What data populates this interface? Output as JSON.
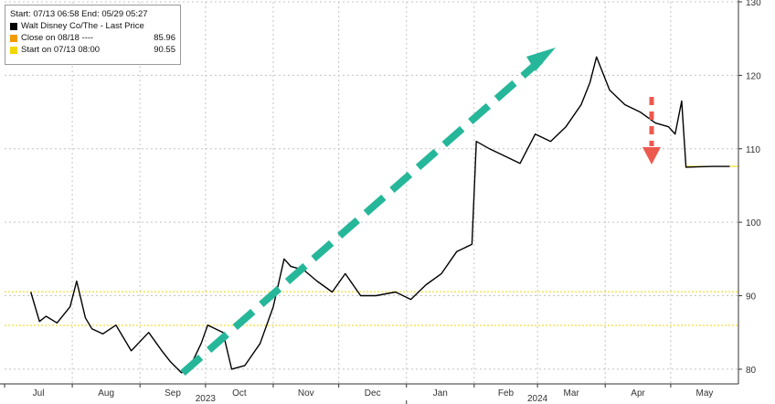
{
  "legend": {
    "header": "Start: 07/13 06:58 End: 05/29 05:27",
    "items": [
      {
        "name": "Walt Disney Co/The - Last Price",
        "value": "",
        "color": "#000000"
      },
      {
        "name": "Close on 08/18 ----",
        "value": "85.96",
        "color": "#f29b00"
      },
      {
        "name": "Start on 07/13 08:00",
        "value": "90.55",
        "color": "#f2d600"
      }
    ]
  },
  "chart_data": {
    "type": "line",
    "title": "",
    "xlabel": "",
    "ylabel": "",
    "ylim": [
      78,
      130
    ],
    "yticks": [
      80,
      90,
      100,
      110,
      120,
      130
    ],
    "months": [
      "Jul",
      "Aug",
      "Sep",
      "Oct",
      "Nov",
      "Dec",
      "Jan",
      "Feb",
      "Mar",
      "Apr",
      "May"
    ],
    "years": [
      "2023",
      "2024"
    ],
    "grid": true,
    "y_axis_side": "right",
    "reference_lines": [
      {
        "label": "Start on 07/13 08:00",
        "value": 90.55,
        "color": "#f2d600"
      },
      {
        "label": "Close on 08/18",
        "value": 85.96,
        "color": "#f2d600"
      },
      {
        "label": "",
        "value": 107.6,
        "color": "#f2d600"
      }
    ],
    "series": [
      {
        "name": "Walt Disney Co/The - Last Price",
        "color": "#000000",
        "x": [
          "2023-07-13",
          "2023-07-17",
          "2023-07-20",
          "2023-07-25",
          "2023-07-31",
          "2023-08-03",
          "2023-08-07",
          "2023-08-10",
          "2023-08-15",
          "2023-08-21",
          "2023-08-28",
          "2023-09-05",
          "2023-09-11",
          "2023-09-15",
          "2023-09-20",
          "2023-09-25",
          "2023-09-29",
          "2023-10-02",
          "2023-10-09",
          "2023-10-13",
          "2023-10-19",
          "2023-10-26",
          "2023-11-01",
          "2023-11-06",
          "2023-11-09",
          "2023-11-15",
          "2023-11-21",
          "2023-11-28",
          "2023-12-04",
          "2023-12-11",
          "2023-12-18",
          "2023-12-27",
          "2024-01-03",
          "2024-01-10",
          "2024-01-17",
          "2024-01-24",
          "2024-01-31",
          "2024-02-02",
          "2024-02-08",
          "2024-02-15",
          "2024-02-22",
          "2024-02-29",
          "2024-03-07",
          "2024-03-14",
          "2024-03-21",
          "2024-03-25",
          "2024-03-28",
          "2024-04-03",
          "2024-04-10",
          "2024-04-17",
          "2024-04-24",
          "2024-04-30",
          "2024-05-03",
          "2024-05-06",
          "2024-05-08",
          "2024-05-20",
          "2024-05-28"
        ],
        "values": [
          90.5,
          86.5,
          87.2,
          86.3,
          88.5,
          92.0,
          87.0,
          85.5,
          84.8,
          86.0,
          82.5,
          85.0,
          82.5,
          81.0,
          79.5,
          81.0,
          83.5,
          86.0,
          85.0,
          80.0,
          80.5,
          83.5,
          88.5,
          95.0,
          94.0,
          93.5,
          92.0,
          90.5,
          93.0,
          90.0,
          90.0,
          90.5,
          89.5,
          91.5,
          93.0,
          96.0,
          97.0,
          111.0,
          110.0,
          109.0,
          108.0,
          112.0,
          111.0,
          113.0,
          116.0,
          119.0,
          122.5,
          118.0,
          116.0,
          115.0,
          113.5,
          113.0,
          112.0,
          116.5,
          107.5,
          107.6,
          107.6
        ]
      }
    ]
  }
}
